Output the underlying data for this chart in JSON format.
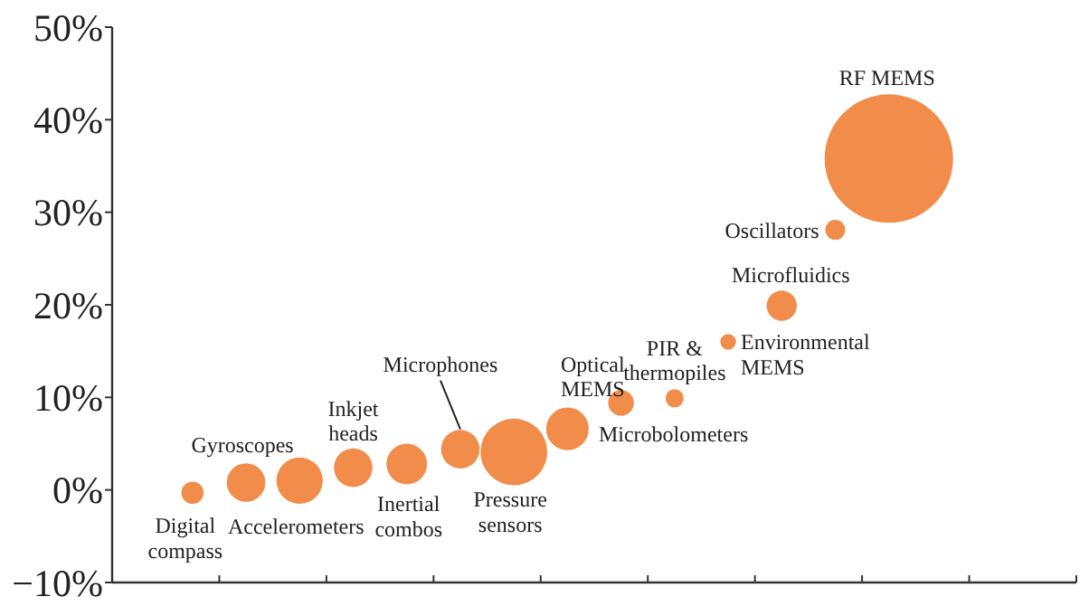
{
  "chart_data": {
    "type": "bubble",
    "categories": [
      null,
      null,
      null,
      null,
      null,
      null,
      null,
      null,
      null,
      null,
      null,
      null,
      null,
      null,
      null,
      null,
      null,
      null
    ],
    "series": [
      {
        "color": "#f28c4a",
        "values": [
          null,
          -0.3,
          0.8,
          1.0,
          2.4,
          2.8,
          4.4,
          4.1,
          6.6,
          9.4,
          9.9,
          16.0,
          19.9,
          28.1,
          35.8,
          null,
          null,
          null
        ],
        "sizes": [
          null,
          0.03,
          0.09,
          0.13,
          0.09,
          0.1,
          0.09,
          0.27,
          0.11,
          0.04,
          0.02,
          0.015,
          0.055,
          0.024,
          1,
          null,
          null,
          null
        ]
      }
    ],
    "ylim": [
      -10,
      50
    ],
    "yticks": [
      {
        "value": -10,
        "label": "−10%"
      },
      {
        "value": 0,
        "label": "0%"
      },
      {
        "value": 10,
        "label": "10%"
      },
      {
        "value": 20,
        "label": "20%"
      },
      {
        "value": 30,
        "label": "30%"
      },
      {
        "value": 40,
        "label": "40%"
      },
      {
        "value": 50,
        "label": "50%"
      }
    ],
    "annotations": [
      "Digital\ncompass",
      "Gyroscopes",
      "Accelerometers",
      "Inkjet\nheads",
      "Inertial\ncombos",
      "Microphones",
      "Pressure\nsensors",
      "Optical\nMEMS",
      "Microbolometers",
      "PIR &\nthermopiles",
      "Environmental\nMEMS",
      "Microfluidics",
      "Oscillators",
      "RF MEMS"
    ]
  }
}
